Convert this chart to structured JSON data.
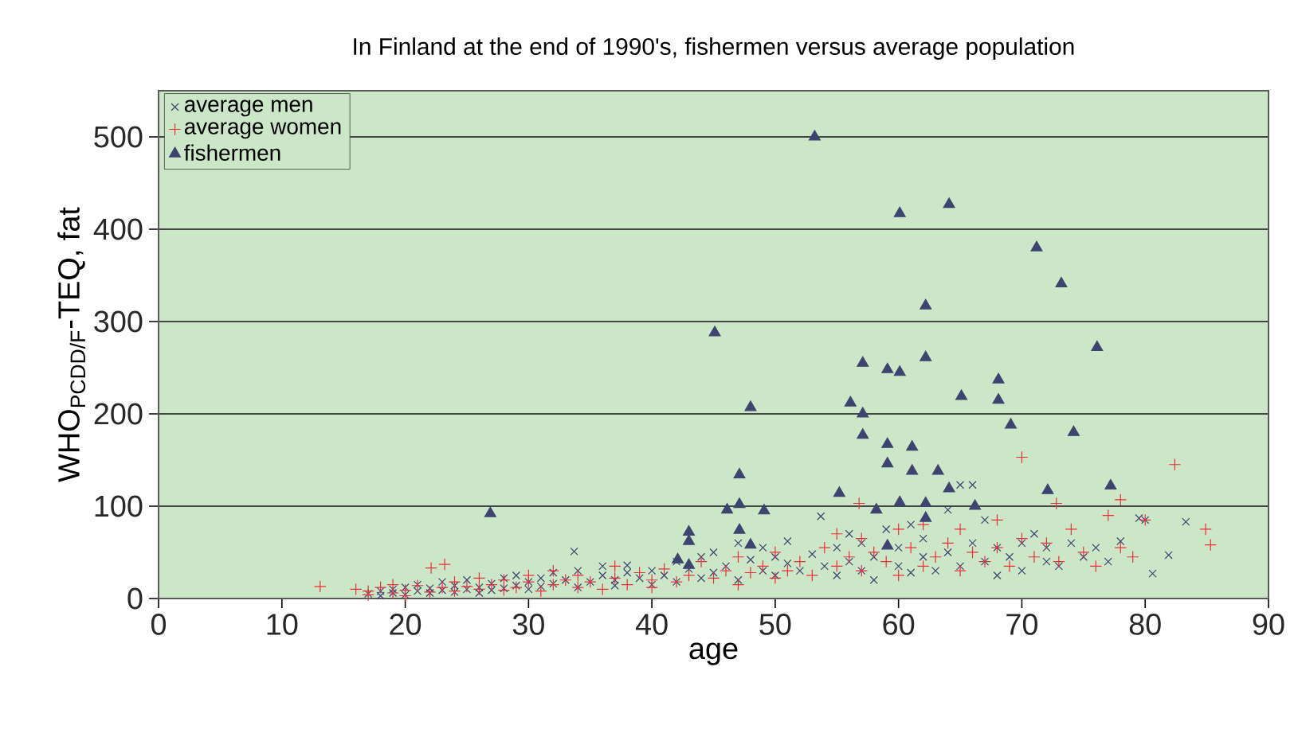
{
  "chart_data": {
    "type": "scatter",
    "title": "In Finland at the end of 1990's, fishermen versus average population",
    "xlabel": "age",
    "ylabel": "WHO$_{PCDD/F}$-TEQ, fat",
    "xlim": [
      0,
      90
    ],
    "ylim": [
      0,
      550
    ],
    "xticks": [
      0,
      10,
      20,
      30,
      40,
      50,
      60,
      70,
      80,
      90
    ],
    "yticks": [
      0,
      100,
      200,
      300,
      400,
      500
    ],
    "grid": "y",
    "legend": "top left",
    "series": [
      {
        "name": "average men",
        "color": "#3d4470",
        "marker": "cross",
        "x": [
          17,
          18,
          18,
          19,
          19,
          20,
          20,
          21,
          21,
          22,
          22,
          23,
          23,
          24,
          24,
          25,
          25,
          26,
          26,
          27,
          27,
          28,
          28,
          29,
          29,
          30,
          30,
          31,
          31,
          32,
          32,
          33,
          33.7,
          34,
          34,
          35,
          36,
          36,
          37,
          37,
          38,
          38,
          39,
          40,
          40,
          41,
          42,
          42,
          43,
          44,
          44,
          45,
          45,
          46,
          47,
          47,
          48,
          49,
          49,
          50,
          50,
          51,
          51,
          52,
          53,
          53.7,
          54,
          55,
          55,
          56,
          56,
          57,
          57,
          58,
          58,
          59,
          60,
          60,
          61,
          61,
          62,
          62,
          63,
          64,
          64,
          65,
          65,
          66,
          66,
          67,
          67,
          68,
          68,
          69,
          70,
          70,
          71,
          72,
          72,
          73,
          74,
          75,
          76,
          77,
          78,
          79.5,
          80.6,
          80,
          81.9,
          83.3
        ],
        "values": [
          5,
          8,
          3,
          10,
          6,
          4,
          12,
          8,
          15,
          6,
          11,
          9,
          18,
          7,
          14,
          10,
          20,
          12,
          6,
          16,
          9,
          22,
          11,
          14,
          25,
          10,
          18,
          22,
          13,
          28,
          16,
          20,
          51,
          12,
          30,
          18,
          25,
          35,
          20,
          14,
          28,
          36,
          22,
          30,
          15,
          25,
          40,
          18,
          32,
          45,
          22,
          50,
          28,
          35,
          60,
          20,
          42,
          30,
          55,
          25,
          45,
          38,
          62,
          30,
          48,
          89,
          35,
          55,
          25,
          40,
          70,
          30,
          60,
          45,
          20,
          75,
          35,
          55,
          28,
          80,
          45,
          65,
          30,
          96,
          50,
          123,
          35,
          123,
          60,
          40,
          85,
          25,
          55,
          45,
          30,
          60,
          70,
          40,
          55,
          35,
          60,
          45,
          55,
          40,
          62,
          87,
          27,
          85,
          47,
          83
        ]
      },
      {
        "name": "average women",
        "color": "#e8303a",
        "marker": "plus",
        "x": [
          13.1,
          16,
          17,
          17,
          18,
          19,
          19,
          20,
          20,
          21,
          22.1,
          22,
          23.2,
          23,
          24,
          24,
          25,
          26,
          26,
          27,
          28,
          28,
          29,
          30,
          30,
          31,
          32,
          32,
          33,
          34,
          34,
          35,
          36,
          37,
          37,
          38,
          39,
          40,
          40,
          41,
          42,
          43,
          44,
          45,
          46,
          47,
          47,
          48,
          49,
          50,
          50,
          51,
          52,
          53,
          54,
          55,
          55,
          56,
          56.8,
          57,
          57,
          58,
          59,
          60,
          60,
          61,
          62,
          62,
          63,
          64,
          65,
          65,
          66,
          67,
          68,
          68,
          69,
          70,
          70,
          71,
          72,
          72.8,
          73,
          74,
          75,
          76,
          77,
          78,
          78,
          79,
          80,
          82.4,
          84.9,
          85.3
        ],
        "values": [
          13,
          10,
          8,
          4,
          12,
          6,
          15,
          9,
          3,
          14,
          33,
          7,
          37,
          12,
          18,
          8,
          13,
          22,
          10,
          15,
          9,
          20,
          12,
          18,
          25,
          8,
          15,
          30,
          20,
          12,
          25,
          18,
          10,
          22,
          35,
          15,
          28,
          12,
          20,
          32,
          18,
          25,
          40,
          22,
          30,
          15,
          45,
          28,
          35,
          22,
          50,
          30,
          40,
          25,
          55,
          35,
          70,
          45,
          103,
          30,
          65,
          50,
          40,
          75,
          25,
          55,
          35,
          80,
          45,
          60,
          30,
          75,
          50,
          40,
          85,
          55,
          35,
          153,
          65,
          45,
          60,
          103,
          40,
          75,
          50,
          35,
          90,
          107,
          55,
          45,
          85,
          145,
          75,
          58
        ]
      },
      {
        "name": "fishermen",
        "color": "#3d4470",
        "marker": "triangle",
        "x": [
          26.9,
          42.1,
          43.0,
          43.0,
          43.0,
          45.1,
          46.1,
          47.1,
          47.1,
          47.1,
          48.0,
          48.0,
          49.1,
          53.2,
          55.2,
          56.1,
          57.1,
          57.1,
          57.1,
          58.2,
          59.1,
          59.1,
          59.1,
          59.1,
          60.1,
          60.1,
          60.1,
          61.1,
          61.1,
          62.2,
          62.2,
          62.2,
          62.2,
          63.2,
          64.1,
          64.1,
          65.1,
          66.2,
          68.1,
          68.1,
          69.1,
          71.2,
          72.1,
          73.2,
          74.2,
          76.1,
          77.2
        ],
        "values": [
          92,
          42,
          72,
          62,
          36,
          288,
          96,
          134,
          102,
          74,
          207,
          58,
          95,
          500,
          114,
          212,
          255,
          200,
          177,
          96,
          248,
          167,
          146,
          57,
          417,
          245,
          104,
          164,
          138,
          317,
          261,
          103,
          87,
          138,
          427,
          119,
          219,
          100,
          237,
          215,
          188,
          380,
          117,
          341,
          180,
          272,
          122
        ]
      }
    ]
  }
}
